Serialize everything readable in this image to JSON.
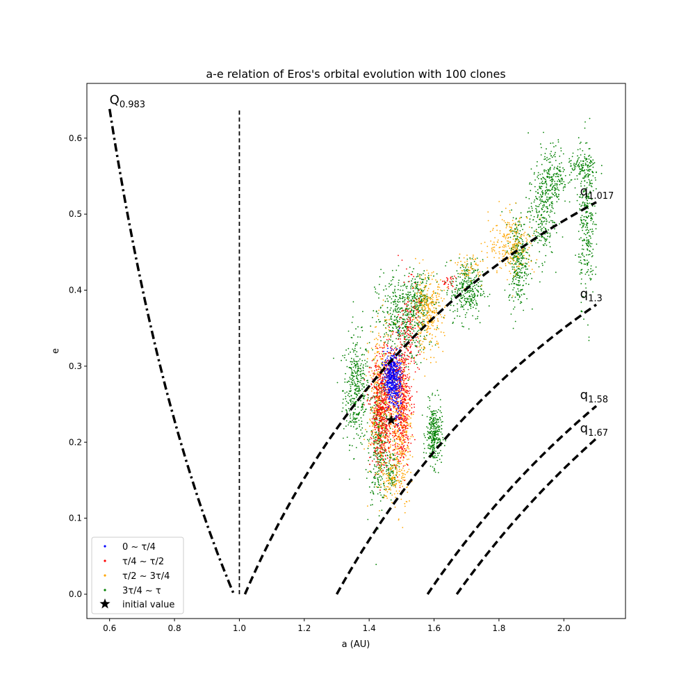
{
  "chart_data": {
    "type": "scatter",
    "title": "a-e relation of Eros's orbital evolution with 100 clones",
    "xlabel": "a (AU)",
    "ylabel": "e",
    "xlim": [
      0.53,
      2.19
    ],
    "ylim": [
      -0.032,
      0.672
    ],
    "xticks": [
      0.6,
      0.8,
      1.0,
      1.2,
      1.4,
      1.6,
      1.8,
      2.0
    ],
    "xtick_labels": [
      "0.6",
      "0.8",
      "1.0",
      "1.2",
      "1.4",
      "1.6",
      "1.8",
      "2.0"
    ],
    "yticks": [
      0.0,
      0.1,
      0.2,
      0.3,
      0.4,
      0.5,
      0.6
    ],
    "ytick_labels": [
      "0.0",
      "0.1",
      "0.2",
      "0.3",
      "0.4",
      "0.5",
      "0.6"
    ],
    "legend_position": "bottom-left",
    "series": [
      {
        "name": "0 ~ τ/4",
        "color": "#0000ff",
        "clusters": [
          {
            "a": 1.47,
            "e": 0.285,
            "sa": 0.012,
            "se": 0.015,
            "n": 420
          },
          {
            "a": 1.49,
            "e": 0.27,
            "sa": 0.006,
            "se": 0.03,
            "n": 80
          }
        ]
      },
      {
        "name": "τ/4 ~ τ/2",
        "color": "#ff0000",
        "clusters": [
          {
            "a": 1.44,
            "e": 0.24,
            "sa": 0.018,
            "se": 0.035,
            "n": 500
          },
          {
            "a": 1.5,
            "e": 0.25,
            "sa": 0.015,
            "se": 0.04,
            "n": 400
          },
          {
            "a": 1.525,
            "e": 0.35,
            "sa": 0.015,
            "se": 0.03,
            "n": 140
          },
          {
            "a": 1.47,
            "e": 0.3,
            "sa": 0.02,
            "se": 0.02,
            "n": 120
          },
          {
            "a": 1.645,
            "e": 0.41,
            "sa": 0.012,
            "se": 0.005,
            "n": 25
          }
        ]
      },
      {
        "name": "τ/2 ~ 3τ/4",
        "color": "#ffa500",
        "clusters": [
          {
            "a": 1.44,
            "e": 0.25,
            "sa": 0.02,
            "se": 0.05,
            "n": 450
          },
          {
            "a": 1.5,
            "e": 0.22,
            "sa": 0.015,
            "se": 0.045,
            "n": 350
          },
          {
            "a": 1.58,
            "e": 0.37,
            "sa": 0.025,
            "se": 0.025,
            "n": 300
          },
          {
            "a": 1.84,
            "e": 0.46,
            "sa": 0.035,
            "se": 0.02,
            "n": 250
          },
          {
            "a": 1.71,
            "e": 0.43,
            "sa": 0.02,
            "se": 0.01,
            "n": 60
          },
          {
            "a": 1.47,
            "e": 0.15,
            "sa": 0.015,
            "se": 0.012,
            "n": 80
          }
        ]
      },
      {
        "name": "3τ/4 ~ τ",
        "color": "#008000",
        "clusters": [
          {
            "a": 1.36,
            "e": 0.27,
            "sa": 0.02,
            "se": 0.035,
            "n": 380
          },
          {
            "a": 1.43,
            "e": 0.2,
            "sa": 0.015,
            "se": 0.04,
            "n": 350
          },
          {
            "a": 1.5,
            "e": 0.36,
            "sa": 0.04,
            "se": 0.03,
            "n": 450
          },
          {
            "a": 1.6,
            "e": 0.21,
            "sa": 0.012,
            "se": 0.02,
            "n": 300
          },
          {
            "a": 1.7,
            "e": 0.4,
            "sa": 0.025,
            "se": 0.02,
            "n": 300
          },
          {
            "a": 1.86,
            "e": 0.44,
            "sa": 0.015,
            "se": 0.03,
            "n": 300
          },
          {
            "a": 1.93,
            "e": 0.5,
            "sa": 0.02,
            "se": 0.03,
            "n": 250
          },
          {
            "a": 1.97,
            "e": 0.55,
            "sa": 0.02,
            "se": 0.02,
            "n": 200
          },
          {
            "a": 2.07,
            "e": 0.49,
            "sa": 0.012,
            "se": 0.05,
            "n": 300
          },
          {
            "a": 2.06,
            "e": 0.56,
            "sa": 0.025,
            "se": 0.01,
            "n": 120
          },
          {
            "a": 1.55,
            "e": 0.39,
            "sa": 0.025,
            "se": 0.015,
            "n": 200
          },
          {
            "a": 1.47,
            "e": 0.16,
            "sa": 0.01,
            "se": 0.015,
            "n": 80
          }
        ]
      }
    ],
    "initial_value": {
      "label": "initial value",
      "a": 1.468,
      "e": 0.229,
      "color": "#000000"
    },
    "reference_curves": [
      {
        "kind": "aphelion",
        "label_main": "Q",
        "label_sub": "0.983",
        "q": 0.983,
        "a_range": [
          0.6,
          0.983
        ],
        "label_at": {
          "a": 0.6,
          "e": 0.645
        }
      },
      {
        "kind": "perihelion",
        "label_main": "q",
        "label_sub": "1.017",
        "q": 1.017,
        "a_range": [
          1.017,
          2.1
        ],
        "label_at": {
          "a": 2.05,
          "e": 0.525
        }
      },
      {
        "kind": "perihelion",
        "label_main": "q",
        "label_sub": "1.3",
        "q": 1.3,
        "a_range": [
          1.3,
          2.1
        ],
        "label_at": {
          "a": 2.05,
          "e": 0.39
        }
      },
      {
        "kind": "perihelion",
        "label_main": "q",
        "label_sub": "1.58",
        "q": 1.58,
        "a_range": [
          1.58,
          2.1
        ],
        "label_at": {
          "a": 2.05,
          "e": 0.257
        }
      },
      {
        "kind": "perihelion",
        "label_main": "q",
        "label_sub": "1.67",
        "q": 1.67,
        "a_range": [
          1.67,
          2.1
        ],
        "label_at": {
          "a": 2.05,
          "e": 0.213
        }
      }
    ],
    "vertical_line": {
      "a": 1.0,
      "e_range": [
        0.0,
        0.64
      ]
    }
  }
}
